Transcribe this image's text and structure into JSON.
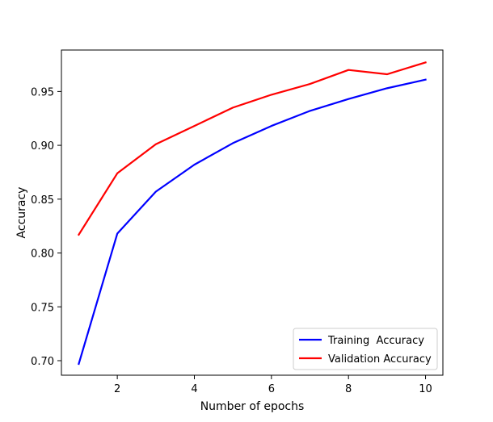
{
  "chart_data": {
    "type": "line",
    "title": "",
    "xlabel": "Number of epochs",
    "ylabel": "Accuracy",
    "x": [
      1,
      2,
      3,
      4,
      5,
      6,
      7,
      8,
      9,
      10
    ],
    "xlim": [
      0.55,
      10.45
    ],
    "ylim": [
      0.6865,
      0.9885
    ],
    "xticks": [
      2,
      4,
      6,
      8,
      10
    ],
    "yticks": [
      0.7,
      0.75,
      0.8,
      0.85,
      0.9,
      0.95
    ],
    "ytick_labels": [
      "0.70",
      "0.75",
      "0.80",
      "0.85",
      "0.90",
      "0.95"
    ],
    "grid": false,
    "legend_position": "lower-right",
    "series": [
      {
        "name": "Training  Accuracy",
        "color": "#0000ff",
        "values": [
          0.697,
          0.818,
          0.857,
          0.882,
          0.902,
          0.918,
          0.932,
          0.943,
          0.953,
          0.961
        ]
      },
      {
        "name": "Validation Accuracy",
        "color": "#ff0000",
        "values": [
          0.817,
          0.874,
          0.901,
          0.918,
          0.935,
          0.947,
          0.957,
          0.97,
          0.966,
          0.977
        ]
      }
    ]
  }
}
